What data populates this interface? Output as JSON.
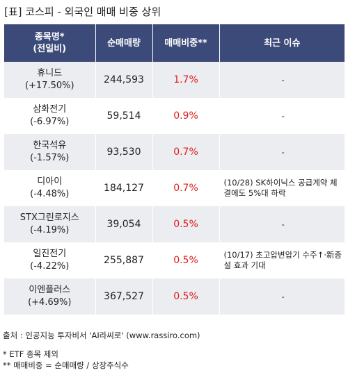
{
  "title": "[표] 코스피 - 외국인 매매 비중 상위",
  "headers": {
    "col1_line1": "종목명*",
    "col1_line2": "(전일비)",
    "col2": "순매매량",
    "col3": "매매비중**",
    "col4": "최근 이슈"
  },
  "rows": [
    {
      "name": "휴니드",
      "change": "(+17.50%)",
      "volume": "244,593",
      "ratio": "1.7%",
      "issue": "-"
    },
    {
      "name": "삼화전기",
      "change": "(-6.97%)",
      "volume": "59,514",
      "ratio": "0.9%",
      "issue": "-"
    },
    {
      "name": "한국석유",
      "change": "(-1.57%)",
      "volume": "93,530",
      "ratio": "0.7%",
      "issue": "-"
    },
    {
      "name": "디아이",
      "change": "(-4.48%)",
      "volume": "184,127",
      "ratio": "0.7%",
      "issue": "(10/28) SK하이닉스 공급계약 체결에도 5%대 하락"
    },
    {
      "name": "STX그린로지스",
      "change": "(-4.19%)",
      "volume": "39,054",
      "ratio": "0.5%",
      "issue": "-"
    },
    {
      "name": "일진전기",
      "change": "(-4.22%)",
      "volume": "255,887",
      "ratio": "0.5%",
      "issue": "(10/17) 초고압변압기 수주↑·新증설 효과 기대"
    },
    {
      "name": "이엔플러스",
      "change": "(+4.69%)",
      "volume": "367,527",
      "ratio": "0.5%",
      "issue": "-"
    }
  ],
  "footer": {
    "source": "출처 : 인공지능 투자비서 'AI라씨로' (www.rassiro.com)",
    "note1": "* ETF 종목 제외",
    "note2": "** 매매비중 = 순매매량 / 상장주식수"
  },
  "colors": {
    "header_bg": "#3b4a78",
    "stripe_bg": "#ecedf1",
    "ratio_text": "#e01b1b"
  }
}
